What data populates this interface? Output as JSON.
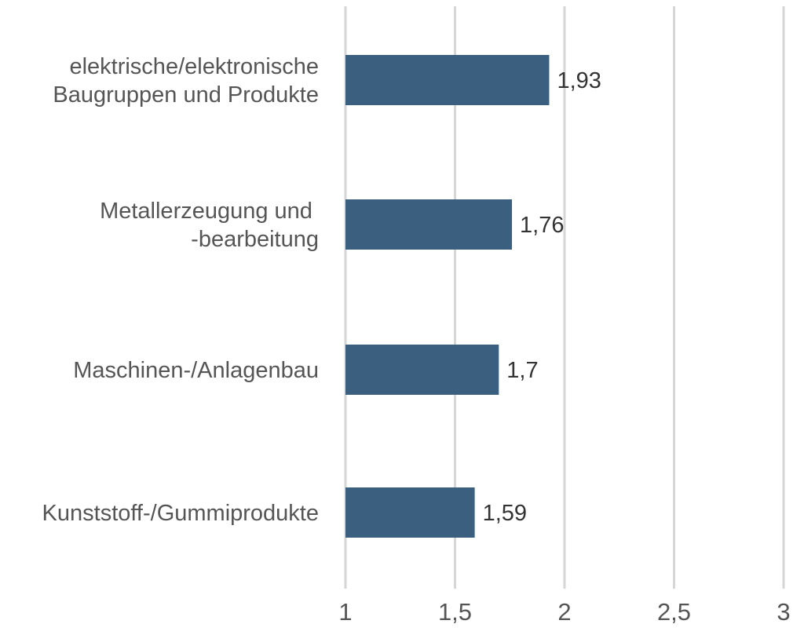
{
  "chart_data": {
    "type": "bar",
    "orientation": "horizontal",
    "categories": [
      [
        "elektrische/elektronische",
        "Baugruppen und Produkte"
      ],
      [
        "Metallerzeugung und ",
        "-bearbeitung"
      ],
      [
        "Maschinen-/Anlagenbau"
      ],
      [
        "Kunststoff-/Gummiprodukte"
      ]
    ],
    "values": [
      1.93,
      1.76,
      1.7,
      1.59
    ],
    "data_labels": [
      "1,93",
      "1,76",
      "1,7",
      "1,59"
    ],
    "xlim": [
      1,
      3
    ],
    "xticks": [
      1,
      1.5,
      2,
      2.5,
      3
    ],
    "xtick_labels": [
      "1",
      "1,5",
      "2",
      "2,5",
      "3"
    ],
    "title": "",
    "xlabel": "",
    "ylabel": "",
    "grid": "vertical",
    "legend": "none",
    "bar_color": "#3b5f7f"
  }
}
